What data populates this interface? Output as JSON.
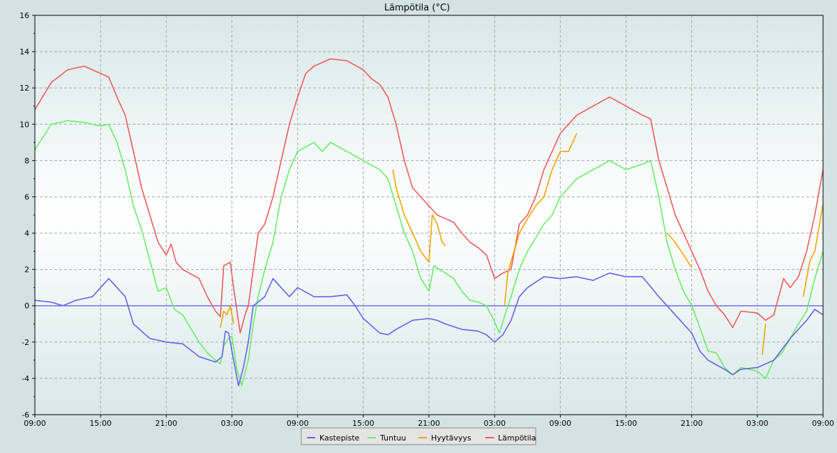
{
  "chart_data": {
    "type": "line",
    "title": "Lämpötila (°C)",
    "xlabel": "",
    "ylabel": "",
    "ylim": [
      -6,
      16
    ],
    "yticks": [
      -6,
      -4,
      -2,
      0,
      2,
      4,
      6,
      8,
      10,
      12,
      14,
      16
    ],
    "x_range_hours": [
      0,
      48
    ],
    "x_tick_labels": [
      "09:00",
      "15:00",
      "21:00",
      "03:00",
      "09:00",
      "15:00",
      "21:00",
      "03:00",
      "09:00",
      "15:00",
      "21:00",
      "03:00",
      "09:00"
    ],
    "grid": true,
    "legend_position": "bottom-center",
    "reference_line": {
      "y": 0,
      "color": "#5a5ae6"
    },
    "series": [
      {
        "name": "Kastepiste",
        "color": "#6262ea",
        "points": [
          [
            0,
            0.3
          ],
          [
            1,
            0.2
          ],
          [
            1.7,
            0
          ],
          [
            2.5,
            0.3
          ],
          [
            3.5,
            0.5
          ],
          [
            4,
            1
          ],
          [
            4.5,
            1.5
          ],
          [
            5,
            1
          ],
          [
            5.5,
            0.5
          ],
          [
            6,
            -1
          ],
          [
            7,
            -1.8
          ],
          [
            8,
            -2
          ],
          [
            9,
            -2.1
          ],
          [
            10,
            -2.8
          ],
          [
            11,
            -3.1
          ],
          [
            11.4,
            -2.8
          ],
          [
            11.6,
            -1.4
          ],
          [
            11.8,
            -1.5
          ],
          [
            12.1,
            -3
          ],
          [
            12.4,
            -4.4
          ],
          [
            12.7,
            -3.4
          ],
          [
            13,
            -2
          ],
          [
            13.3,
            0
          ],
          [
            14,
            0.5
          ],
          [
            14.5,
            1.5
          ],
          [
            15,
            1
          ],
          [
            15.5,
            0.5
          ],
          [
            16,
            1
          ],
          [
            17,
            0.5
          ],
          [
            18,
            0.5
          ],
          [
            19,
            0.6
          ],
          [
            19.5,
            0
          ],
          [
            20,
            -0.7
          ],
          [
            21,
            -1.5
          ],
          [
            21.5,
            -1.6
          ],
          [
            22,
            -1.3
          ],
          [
            23,
            -0.8
          ],
          [
            24,
            -0.7
          ],
          [
            24.5,
            -0.8
          ],
          [
            25,
            -1
          ],
          [
            26,
            -1.3
          ],
          [
            27,
            -1.4
          ],
          [
            27.5,
            -1.6
          ],
          [
            28,
            -2
          ],
          [
            28.5,
            -1.6
          ],
          [
            29,
            -0.8
          ],
          [
            29.5,
            0.5
          ],
          [
            30,
            1
          ],
          [
            31,
            1.6
          ],
          [
            32,
            1.5
          ],
          [
            33,
            1.6
          ],
          [
            34,
            1.4
          ],
          [
            35,
            1.8
          ],
          [
            36,
            1.6
          ],
          [
            37,
            1.6
          ],
          [
            38,
            0.5
          ],
          [
            38.5,
            0
          ],
          [
            39,
            -0.5
          ],
          [
            40,
            -1.5
          ],
          [
            40.5,
            -2.5
          ],
          [
            41,
            -3
          ],
          [
            42,
            -3.5
          ],
          [
            42.5,
            -3.8
          ],
          [
            43,
            -3.5
          ],
          [
            44,
            -3.4
          ],
          [
            45,
            -3
          ],
          [
            46,
            -1.8
          ],
          [
            47,
            -0.8
          ],
          [
            47.5,
            -0.2
          ],
          [
            48,
            -0.5
          ]
        ]
      },
      {
        "name": "Tuntuu",
        "color": "#66ee66",
        "points": [
          [
            0,
            8.6
          ],
          [
            0.5,
            9.3
          ],
          [
            1,
            10
          ],
          [
            2,
            10.2
          ],
          [
            3,
            10.1
          ],
          [
            4,
            9.9
          ],
          [
            4.5,
            10
          ],
          [
            5,
            9
          ],
          [
            5.5,
            7.5
          ],
          [
            6,
            5.5
          ],
          [
            6.5,
            4.2
          ],
          [
            7,
            2.5
          ],
          [
            7.5,
            0.8
          ],
          [
            8,
            1
          ],
          [
            8.5,
            -0.2
          ],
          [
            9,
            -0.5
          ],
          [
            10,
            -2
          ],
          [
            10.5,
            -2.6
          ],
          [
            11,
            -3
          ],
          [
            11.3,
            -3.2
          ],
          [
            11.5,
            -2.2
          ],
          [
            11.8,
            -1.8
          ],
          [
            12,
            -1.7
          ],
          [
            12.3,
            -3.5
          ],
          [
            12.6,
            -4.4
          ],
          [
            13,
            -3
          ],
          [
            13.3,
            -1
          ],
          [
            13.6,
            0.5
          ],
          [
            14,
            2
          ],
          [
            14.5,
            3.5
          ],
          [
            15,
            6
          ],
          [
            15.5,
            7.5
          ],
          [
            16,
            8.5
          ],
          [
            17,
            9
          ],
          [
            17.5,
            8.5
          ],
          [
            18,
            9
          ],
          [
            19,
            8.5
          ],
          [
            20,
            8
          ],
          [
            21,
            7.5
          ],
          [
            21.5,
            7
          ],
          [
            22,
            5.5
          ],
          [
            22.5,
            4
          ],
          [
            23,
            3
          ],
          [
            23.5,
            1.5
          ],
          [
            24,
            0.8
          ],
          [
            24.3,
            2.2
          ],
          [
            25,
            1.8
          ],
          [
            25.5,
            1.5
          ],
          [
            26,
            0.8
          ],
          [
            26.5,
            0.3
          ],
          [
            27,
            0.2
          ],
          [
            27.5,
            0
          ],
          [
            28,
            -0.9
          ],
          [
            28.3,
            -1.5
          ],
          [
            28.7,
            -0.3
          ],
          [
            29,
            0.5
          ],
          [
            29.5,
            2
          ],
          [
            30,
            3
          ],
          [
            31,
            4.5
          ],
          [
            31.5,
            5
          ],
          [
            32,
            6
          ],
          [
            32.5,
            6.5
          ],
          [
            33,
            7
          ],
          [
            34,
            7.5
          ],
          [
            35,
            8
          ],
          [
            36,
            7.5
          ],
          [
            37,
            7.8
          ],
          [
            37.5,
            8
          ],
          [
            38,
            6
          ],
          [
            38.5,
            3.5
          ],
          [
            39,
            2
          ],
          [
            39.5,
            0.8
          ],
          [
            40,
            0
          ],
          [
            40.5,
            -1.2
          ],
          [
            41,
            -2.5
          ],
          [
            41.5,
            -2.6
          ],
          [
            42,
            -3.4
          ],
          [
            42.5,
            -3.8
          ],
          [
            43,
            -3.4
          ],
          [
            44,
            -3.6
          ],
          [
            44.5,
            -4
          ],
          [
            45,
            -3
          ],
          [
            45.5,
            -2.6
          ],
          [
            46,
            -1.8
          ],
          [
            46.5,
            -1
          ],
          [
            47,
            -0.3
          ],
          [
            47.5,
            1.5
          ],
          [
            48,
            3
          ]
        ]
      },
      {
        "name": "Hyytävyys",
        "color": "#f5a200",
        "points": [
          [
            11.3,
            -1.2
          ],
          [
            11.5,
            -0.3
          ],
          [
            11.7,
            -0.5
          ],
          [
            11.9,
            0
          ],
          [
            12.1,
            -1
          ],
          [
            21.8,
            7.5
          ],
          [
            22,
            6.5
          ],
          [
            22.5,
            5
          ],
          [
            23,
            4
          ],
          [
            23.5,
            3
          ],
          [
            24,
            2.4
          ],
          [
            24.2,
            5
          ],
          [
            24.5,
            4.5
          ],
          [
            24.8,
            3.5
          ],
          [
            25,
            3.3
          ],
          [
            28.6,
            0
          ],
          [
            28.8,
            1.8
          ],
          [
            29.5,
            4
          ],
          [
            30,
            4.8
          ],
          [
            30.5,
            5.5
          ],
          [
            31,
            6
          ],
          [
            31.5,
            7.5
          ],
          [
            32,
            8.5
          ],
          [
            32.5,
            8.5
          ],
          [
            33,
            9.5
          ],
          [
            38.5,
            4
          ],
          [
            39,
            3.5
          ],
          [
            39.5,
            2.8
          ],
          [
            40,
            2.1
          ],
          [
            44.3,
            -2.7
          ],
          [
            44.5,
            -1
          ],
          [
            46.8,
            0.5
          ],
          [
            47.2,
            2.5
          ],
          [
            47.5,
            3
          ],
          [
            48,
            5.6
          ]
        ]
      },
      {
        "name": "Lämpötila",
        "color": "#ee5a5a",
        "points": [
          [
            0,
            10.8
          ],
          [
            1,
            12.3
          ],
          [
            2,
            13
          ],
          [
            3,
            13.2
          ],
          [
            3.5,
            13
          ],
          [
            4,
            12.8
          ],
          [
            4.5,
            12.6
          ],
          [
            5,
            11.5
          ],
          [
            5.5,
            10.5
          ],
          [
            6,
            8.5
          ],
          [
            6.5,
            6.5
          ],
          [
            7,
            5
          ],
          [
            7.5,
            3.5
          ],
          [
            8,
            2.8
          ],
          [
            8.3,
            3.4
          ],
          [
            8.6,
            2.4
          ],
          [
            9,
            2
          ],
          [
            10,
            1.5
          ],
          [
            10.5,
            0.5
          ],
          [
            11,
            -0.3
          ],
          [
            11.3,
            -0.6
          ],
          [
            11.5,
            2.2
          ],
          [
            11.9,
            2.4
          ],
          [
            12.1,
            1
          ],
          [
            12.5,
            -1.5
          ],
          [
            12.8,
            -0.5
          ],
          [
            13,
            0
          ],
          [
            13.3,
            2
          ],
          [
            13.6,
            4
          ],
          [
            14,
            4.5
          ],
          [
            14.5,
            6
          ],
          [
            15,
            8
          ],
          [
            15.5,
            10
          ],
          [
            16,
            11.5
          ],
          [
            16.5,
            12.8
          ],
          [
            17,
            13.2
          ],
          [
            18,
            13.6
          ],
          [
            19,
            13.5
          ],
          [
            20,
            13
          ],
          [
            20.5,
            12.5
          ],
          [
            21,
            12.2
          ],
          [
            21.5,
            11.5
          ],
          [
            22,
            10
          ],
          [
            22.5,
            8
          ],
          [
            23,
            6.5
          ],
          [
            23.5,
            6
          ],
          [
            24,
            5.5
          ],
          [
            24.5,
            5
          ],
          [
            25,
            4.8
          ],
          [
            25.5,
            4.6
          ],
          [
            26,
            4
          ],
          [
            26.5,
            3.5
          ],
          [
            27,
            3.2
          ],
          [
            27.5,
            2.8
          ],
          [
            28,
            1.5
          ],
          [
            28.5,
            1.8
          ],
          [
            29,
            2
          ],
          [
            29.5,
            4.5
          ],
          [
            30,
            5
          ],
          [
            30.5,
            6
          ],
          [
            31,
            7.5
          ],
          [
            31.5,
            8.5
          ],
          [
            32,
            9.5
          ],
          [
            33,
            10.5
          ],
          [
            34,
            11
          ],
          [
            35,
            11.5
          ],
          [
            36,
            11
          ],
          [
            37,
            10.5
          ],
          [
            37.5,
            10.3
          ],
          [
            38,
            8
          ],
          [
            38.5,
            6.5
          ],
          [
            39,
            5
          ],
          [
            39.5,
            4
          ],
          [
            40,
            3
          ],
          [
            40.5,
            2
          ],
          [
            41,
            0.8
          ],
          [
            41.5,
            0
          ],
          [
            42,
            -0.5
          ],
          [
            42.5,
            -1.2
          ],
          [
            43,
            -0.3
          ],
          [
            44,
            -0.4
          ],
          [
            44.5,
            -0.8
          ],
          [
            45,
            -0.5
          ],
          [
            45.3,
            0.5
          ],
          [
            45.6,
            1.5
          ],
          [
            46,
            1
          ],
          [
            46.5,
            1.6
          ],
          [
            47,
            3
          ],
          [
            47.5,
            5
          ],
          [
            48,
            7.5
          ]
        ]
      }
    ]
  }
}
